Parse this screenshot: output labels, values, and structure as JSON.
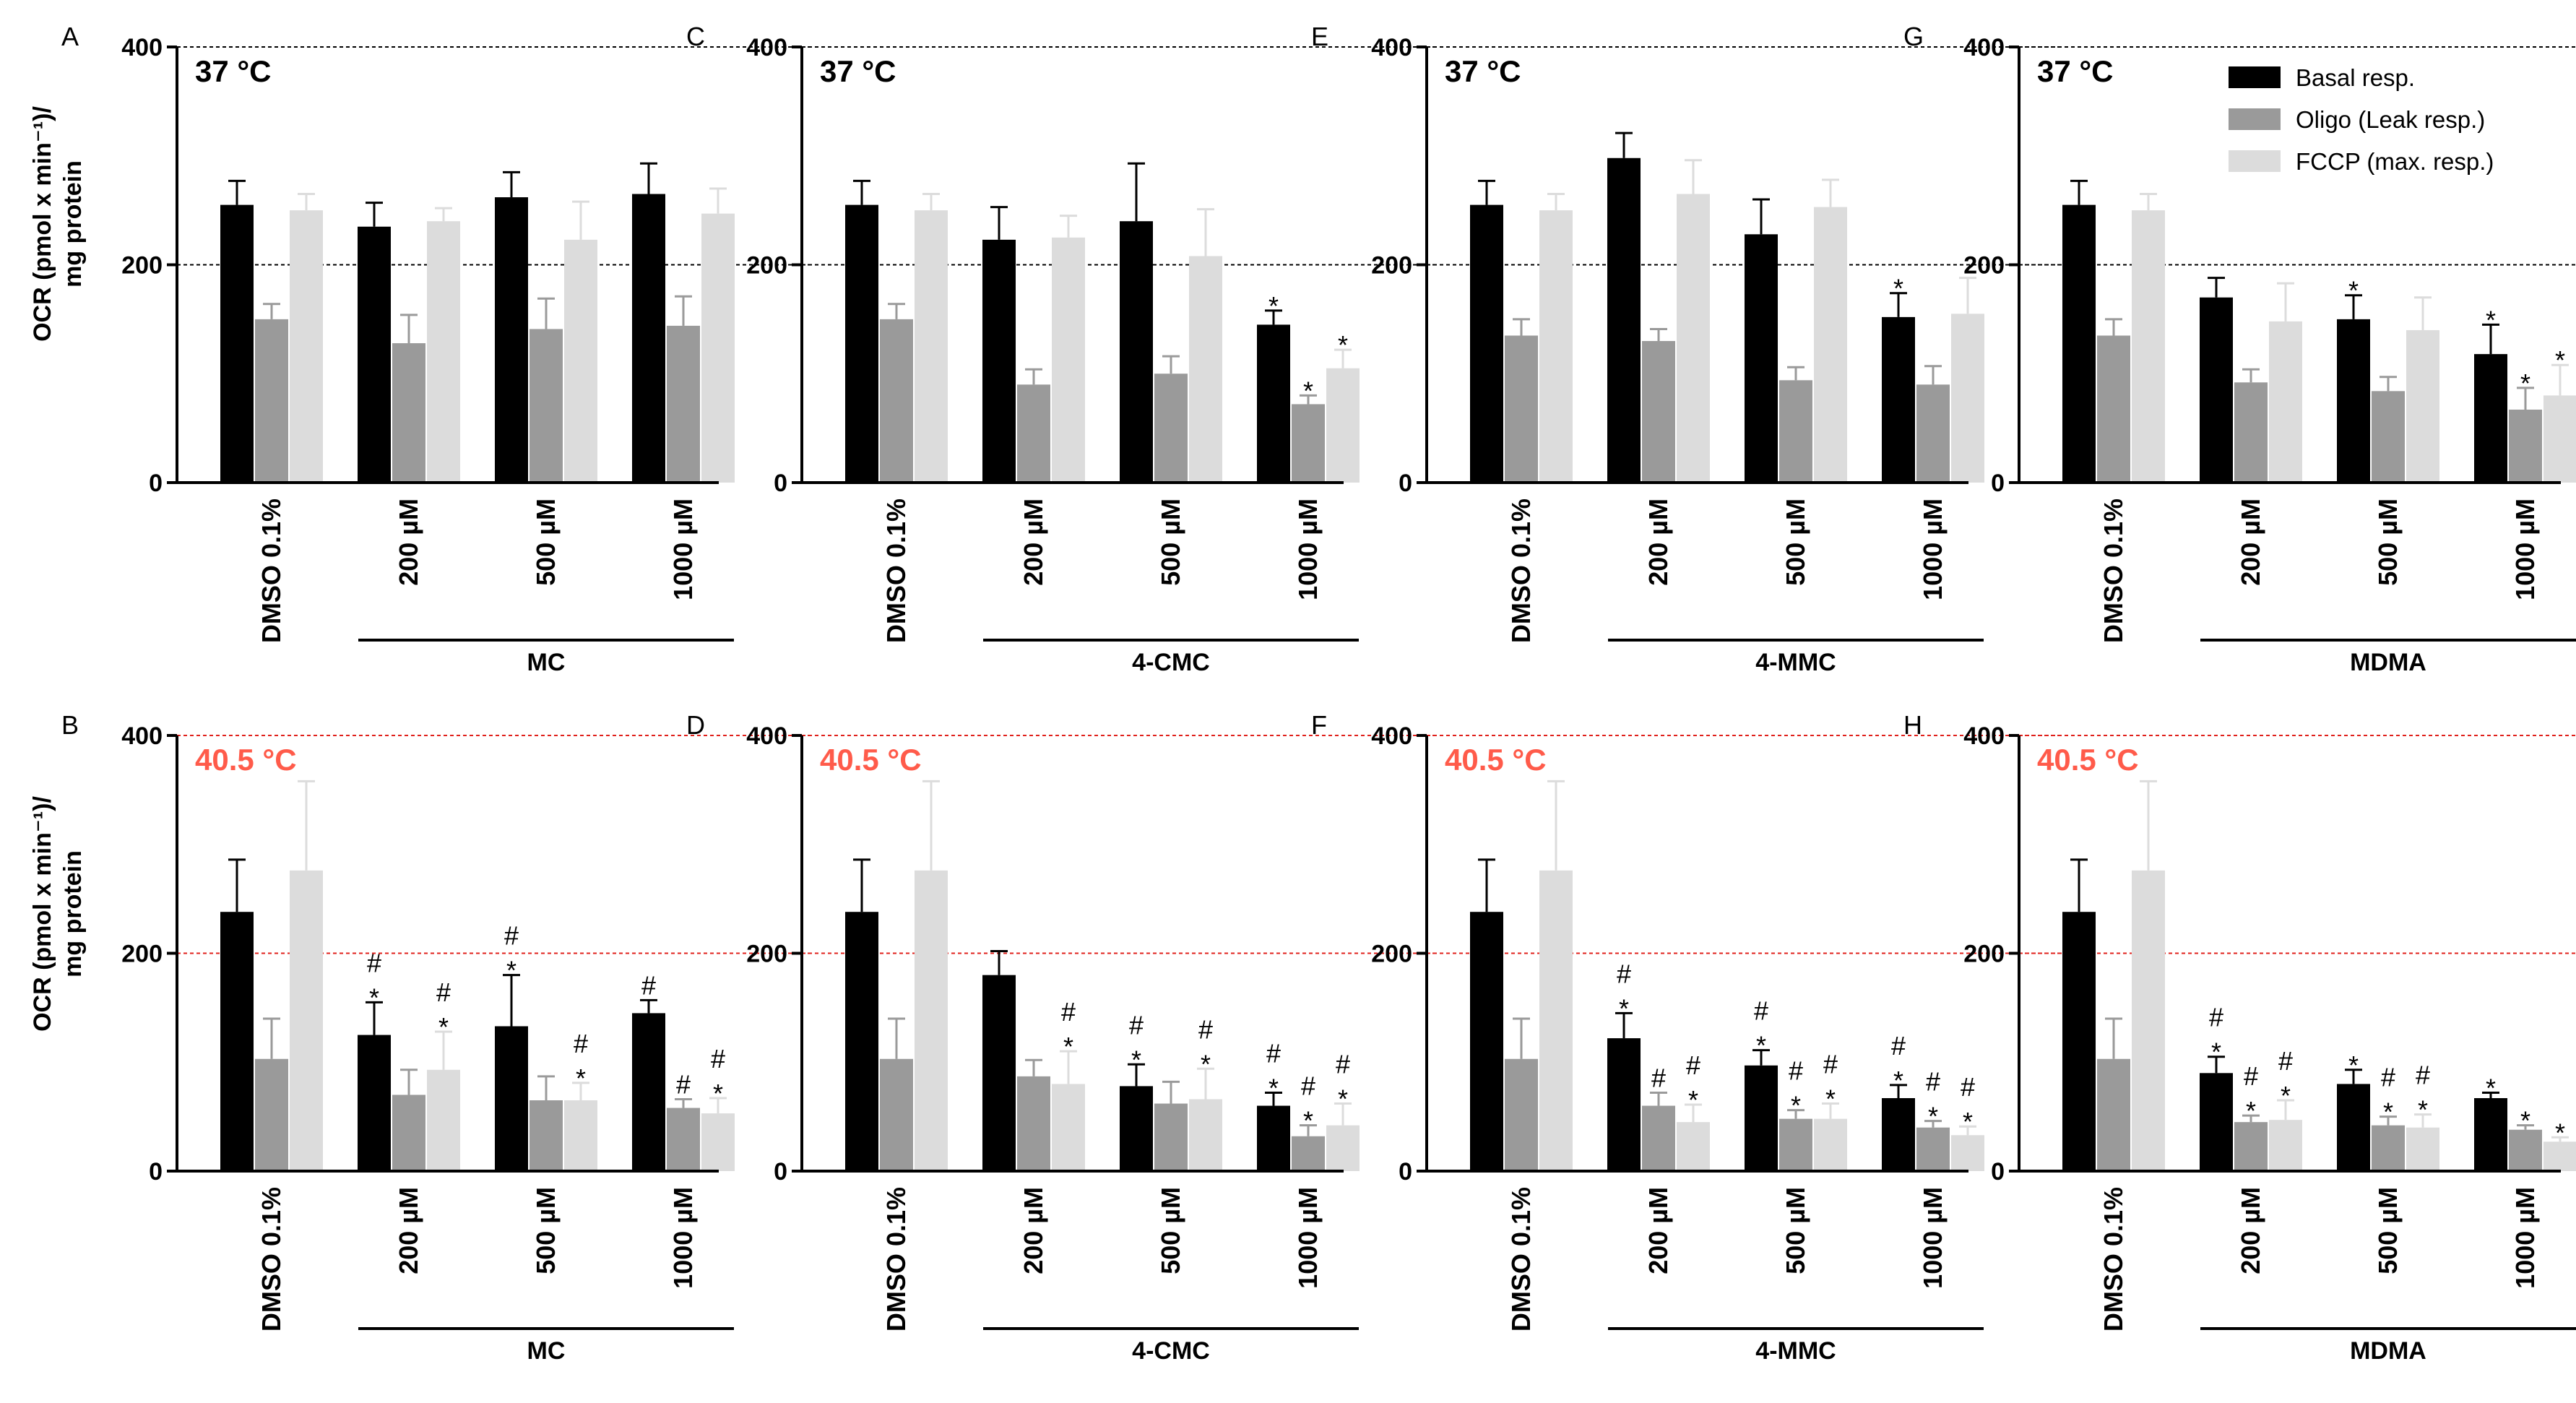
{
  "figure": {
    "ylabel_line1": "OCR (pmol x min⁻¹)/",
    "ylabel_line2": "mg protein",
    "legend": [
      {
        "label": "Basal resp.",
        "color": "#000000"
      },
      {
        "label": "Oligo (Leak resp.)",
        "color": "#9a9a9a"
      },
      {
        "label": "FCCP (max. resp.)",
        "color": "#dcdcdc"
      }
    ]
  },
  "chart_data": [
    {
      "panel": "A",
      "type": "bar",
      "temperature": "37 °C",
      "compound": "MC",
      "categories": [
        "DMSO 0.1%",
        "200 µM",
        "500 µM",
        "1000 µM"
      ],
      "ylim": [
        0,
        400
      ],
      "yticks": [
        "0",
        "200",
        "400"
      ],
      "ref_color": "#000000",
      "temp_color": "#000000",
      "series": [
        {
          "name": "Basal resp.",
          "values": [
            255,
            235,
            262,
            265
          ],
          "errors": [
            22,
            22,
            23,
            28
          ],
          "marks": [
            "",
            "",
            "",
            ""
          ]
        },
        {
          "name": "Oligo (Leak resp.)",
          "values": [
            150,
            128,
            141,
            144
          ],
          "errors": [
            14,
            26,
            28,
            27
          ],
          "marks": [
            "",
            "",
            "",
            ""
          ]
        },
        {
          "name": "FCCP (max. resp.)",
          "values": [
            250,
            240,
            223,
            247
          ],
          "errors": [
            15,
            12,
            35,
            23
          ],
          "marks": [
            "",
            "",
            "",
            ""
          ]
        }
      ]
    },
    {
      "panel": "B",
      "type": "bar",
      "temperature": "40.5 °C",
      "compound": "MC",
      "categories": [
        "DMSO 0.1%",
        "200 µM",
        "500 µM",
        "1000 µM"
      ],
      "ylim": [
        0,
        400
      ],
      "yticks": [
        "0",
        "200",
        "400"
      ],
      "ref_color": "#e0201b",
      "temp_color": "#ff5b4a",
      "series": [
        {
          "name": "Basal resp.",
          "values": [
            238,
            125,
            133,
            145
          ],
          "errors": [
            48,
            30,
            47,
            12
          ],
          "marks": [
            "",
            "#*",
            "#*",
            "#"
          ]
        },
        {
          "name": "Oligo (Leak resp.)",
          "values": [
            103,
            70,
            65,
            58
          ],
          "errors": [
            37,
            23,
            22,
            8
          ],
          "marks": [
            "",
            "",
            "",
            "#"
          ]
        },
        {
          "name": "FCCP (max. resp.)",
          "values": [
            276,
            93,
            65,
            53
          ],
          "errors": [
            82,
            35,
            16,
            14
          ],
          "marks": [
            "",
            "#*",
            "#*",
            "#*"
          ]
        }
      ]
    },
    {
      "panel": "C",
      "type": "bar",
      "temperature": "37 °C",
      "compound": "4-CMC",
      "categories": [
        "DMSO 0.1%",
        "200 µM",
        "500 µM",
        "1000 µM"
      ],
      "ylim": [
        0,
        400
      ],
      "yticks": [
        "0",
        "200",
        "400"
      ],
      "ref_color": "#000000",
      "temp_color": "#000000",
      "series": [
        {
          "name": "Basal resp.",
          "values": [
            255,
            223,
            240,
            145
          ],
          "errors": [
            22,
            30,
            53,
            13
          ],
          "marks": [
            "",
            "",
            "",
            "*"
          ]
        },
        {
          "name": "Oligo (Leak resp.)",
          "values": [
            150,
            90,
            100,
            72
          ],
          "errors": [
            14,
            14,
            16,
            8
          ],
          "marks": [
            "",
            "",
            "",
            "*"
          ]
        },
        {
          "name": "FCCP (max. resp.)",
          "values": [
            250,
            225,
            208,
            105
          ],
          "errors": [
            15,
            20,
            43,
            17
          ],
          "marks": [
            "",
            "",
            "",
            "*"
          ]
        }
      ]
    },
    {
      "panel": "D",
      "type": "bar",
      "temperature": "40.5 °C",
      "compound": "4-CMC",
      "categories": [
        "DMSO 0.1%",
        "200 µM",
        "500 µM",
        "1000 µM"
      ],
      "ylim": [
        0,
        400
      ],
      "yticks": [
        "0",
        "200",
        "400"
      ],
      "ref_color": "#e0201b",
      "temp_color": "#ff5b4a",
      "series": [
        {
          "name": "Basal resp.",
          "values": [
            238,
            180,
            78,
            60
          ],
          "errors": [
            48,
            22,
            20,
            12
          ],
          "marks": [
            "",
            "",
            "#*",
            "#*"
          ]
        },
        {
          "name": "Oligo (Leak resp.)",
          "values": [
            103,
            87,
            62,
            32
          ],
          "errors": [
            37,
            15,
            20,
            10
          ],
          "marks": [
            "",
            "",
            "",
            "#*"
          ]
        },
        {
          "name": "FCCP (max. resp.)",
          "values": [
            276,
            80,
            66,
            42
          ],
          "errors": [
            82,
            30,
            28,
            20
          ],
          "marks": [
            "",
            "#*",
            "#*",
            "#*"
          ]
        }
      ]
    },
    {
      "panel": "E",
      "type": "bar",
      "temperature": "37 °C",
      "compound": "4-MMC",
      "categories": [
        "DMSO 0.1%",
        "200 µM",
        "500 µM",
        "1000 µM"
      ],
      "ylim": [
        0,
        400
      ],
      "yticks": [
        "0",
        "200",
        "400"
      ],
      "ref_color": "#000000",
      "temp_color": "#000000",
      "series": [
        {
          "name": "Basal resp.",
          "values": [
            255,
            298,
            228,
            152
          ],
          "errors": [
            22,
            23,
            32,
            22
          ],
          "marks": [
            "",
            "",
            "",
            "*"
          ]
        },
        {
          "name": "Oligo (Leak resp.)",
          "values": [
            135,
            130,
            94,
            90
          ],
          "errors": [
            15,
            11,
            12,
            17
          ],
          "marks": [
            "",
            "",
            "",
            ""
          ]
        },
        {
          "name": "FCCP (max. resp.)",
          "values": [
            250,
            265,
            253,
            155
          ],
          "errors": [
            15,
            31,
            25,
            33
          ],
          "marks": [
            "",
            "",
            "",
            ""
          ]
        }
      ]
    },
    {
      "panel": "F",
      "type": "bar",
      "temperature": "40.5 °C",
      "compound": "4-MMC",
      "categories": [
        "DMSO 0.1%",
        "200 µM",
        "500 µM",
        "1000 µM"
      ],
      "ylim": [
        0,
        400
      ],
      "yticks": [
        "0",
        "200",
        "400"
      ],
      "ref_color": "#e0201b",
      "temp_color": "#ff5b4a",
      "series": [
        {
          "name": "Basal resp.",
          "values": [
            238,
            122,
            97,
            67
          ],
          "errors": [
            48,
            23,
            14,
            12
          ],
          "marks": [
            "",
            "#*",
            "#*",
            "#*"
          ]
        },
        {
          "name": "Oligo (Leak resp.)",
          "values": [
            103,
            60,
            48,
            40
          ],
          "errors": [
            37,
            12,
            8,
            6
          ],
          "marks": [
            "",
            "#",
            "#*",
            "#*"
          ]
        },
        {
          "name": "FCCP (max. resp.)",
          "values": [
            276,
            45,
            48,
            33
          ],
          "errors": [
            82,
            16,
            14,
            8
          ],
          "marks": [
            "",
            "#*",
            "#*",
            "#*"
          ]
        }
      ]
    },
    {
      "panel": "G",
      "type": "bar",
      "temperature": "37 °C",
      "compound": "MDMA",
      "categories": [
        "DMSO 0.1%",
        "200 µM",
        "500 µM",
        "1000 µM"
      ],
      "ylim": [
        0,
        400
      ],
      "yticks": [
        "0",
        "200",
        "400"
      ],
      "ref_color": "#000000",
      "temp_color": "#000000",
      "series": [
        {
          "name": "Basal resp.",
          "values": [
            255,
            170,
            150,
            118
          ],
          "errors": [
            22,
            18,
            22,
            27
          ],
          "marks": [
            "",
            "",
            "*",
            "*"
          ]
        },
        {
          "name": "Oligo (Leak resp.)",
          "values": [
            135,
            92,
            84,
            67
          ],
          "errors": [
            15,
            12,
            13,
            20
          ],
          "marks": [
            "",
            "",
            "",
            "*"
          ]
        },
        {
          "name": "FCCP (max. resp.)",
          "values": [
            250,
            148,
            140,
            80
          ],
          "errors": [
            15,
            35,
            30,
            28
          ],
          "marks": [
            "",
            "",
            "",
            "*"
          ]
        }
      ]
    },
    {
      "panel": "H",
      "type": "bar",
      "temperature": "40.5 °C",
      "compound": "MDMA",
      "categories": [
        "DMSO 0.1%",
        "200 µM",
        "500 µM",
        "1000 µM"
      ],
      "ylim": [
        0,
        400
      ],
      "yticks": [
        "0",
        "200",
        "400"
      ],
      "ref_color": "#e0201b",
      "temp_color": "#ff5b4a",
      "series": [
        {
          "name": "Basal resp.",
          "values": [
            238,
            90,
            80,
            67
          ],
          "errors": [
            48,
            15,
            13,
            5
          ],
          "marks": [
            "",
            "#*",
            "*",
            "*"
          ]
        },
        {
          "name": "Oligo (Leak resp.)",
          "values": [
            103,
            45,
            42,
            38
          ],
          "errors": [
            37,
            6,
            8,
            4
          ],
          "marks": [
            "",
            "#*",
            "#*",
            "*"
          ]
        },
        {
          "name": "FCCP (max. resp.)",
          "values": [
            276,
            47,
            40,
            27
          ],
          "errors": [
            82,
            18,
            12,
            4
          ],
          "marks": [
            "",
            "#*",
            "#*",
            "*"
          ]
        }
      ]
    }
  ]
}
